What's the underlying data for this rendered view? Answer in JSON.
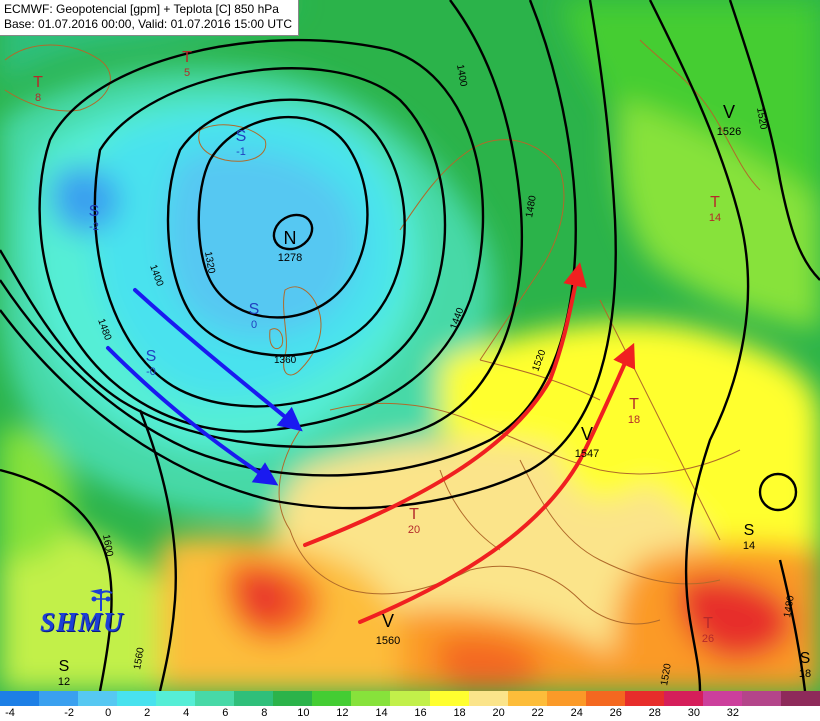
{
  "header": {
    "line1": "ECMWF: Geopotencial [gpm] + Teplota [C] 850 hPa",
    "line2": "Base: 01.07.2016 00:00, Valid: 01.07.2016 15:00 UTC"
  },
  "logo": {
    "text": "SHMU",
    "icon": "weather-station-icon"
  },
  "legend": {
    "ticks": [
      "-4",
      "-2",
      "0",
      "2",
      "4",
      "6",
      "8",
      "10",
      "12",
      "14",
      "16",
      "18",
      "20",
      "22",
      "24",
      "26",
      "28",
      "30",
      "32"
    ],
    "colors": [
      "#1d7fe6",
      "#3aa0ef",
      "#56c8f2",
      "#48e2ee",
      "#55eed6",
      "#47d9a7",
      "#2fbf7a",
      "#2bb34a",
      "#44cd33",
      "#87e23b",
      "#c2f04a",
      "#ffff2f",
      "#fbe48a",
      "#fdbd3a",
      "#fb9a28",
      "#f46820",
      "#e72d2b",
      "#d51e5a",
      "#cc3f9c",
      "#b4458a",
      "#8e2a5a"
    ]
  },
  "pressure_centers": [
    {
      "symbol": "N",
      "value": "1278",
      "color": "#000000"
    },
    {
      "symbol": "V",
      "value": "1526",
      "color": "#000000"
    },
    {
      "symbol": "V",
      "value": "1547",
      "color": "#000000"
    },
    {
      "symbol": "V",
      "value": "1560",
      "color": "#000000"
    }
  ],
  "temperature_centers": [
    {
      "symbol": "T",
      "value": "8",
      "color": "#b52a2a"
    },
    {
      "symbol": "T",
      "value": "5",
      "color": "#b52a2a"
    },
    {
      "symbol": "T",
      "value": "14",
      "color": "#b52a2a"
    },
    {
      "symbol": "T",
      "value": "18",
      "color": "#b52a2a"
    },
    {
      "symbol": "T",
      "value": "20",
      "color": "#b52a2a"
    },
    {
      "symbol": "T",
      "value": "26",
      "color": "#b52a2a"
    },
    {
      "symbol": "S",
      "value": "-1",
      "color": "#2040c0"
    },
    {
      "symbol": "S",
      "value": "-2",
      "color": "#2040c0"
    },
    {
      "symbol": "S",
      "value": "0",
      "color": "#2040c0"
    },
    {
      "symbol": "S",
      "value": "-0",
      "color": "#2040c0"
    },
    {
      "symbol": "S",
      "value": "14",
      "color": "#000000"
    },
    {
      "symbol": "S",
      "value": "12",
      "color": "#000000"
    },
    {
      "symbol": "S",
      "value": "18",
      "color": "#000000"
    }
  ],
  "contour_labels": [
    "1320",
    "1360",
    "1400",
    "1440",
    "1480",
    "1520",
    "1560",
    "1600",
    "1400",
    "1480",
    "1520",
    "1480",
    "1520"
  ],
  "arrows": {
    "cold_color": "#1a1af0",
    "warm_color": "#f02020"
  }
}
